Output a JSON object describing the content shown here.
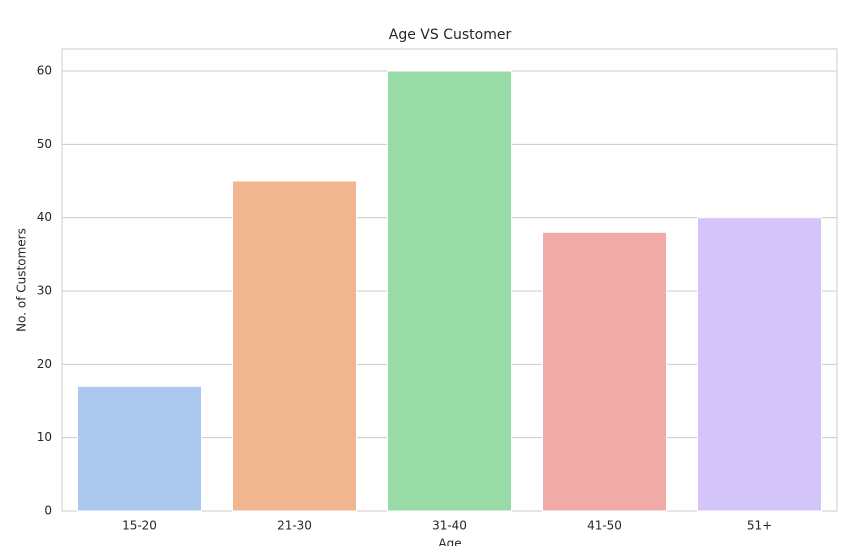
{
  "chart_data": {
    "type": "bar",
    "title": "Age VS Customer",
    "x_label": "Age",
    "y_label": "No. of Customers",
    "categories": [
      "15-20",
      "21-30",
      "31-40",
      "41-50",
      "51+"
    ],
    "values": [
      17,
      45,
      60,
      38,
      40
    ],
    "colors": [
      "#abc9ee",
      "#f0b690",
      "#98dba6",
      "#f2aaa8",
      "#d3c4fa"
    ],
    "ylim": [
      0,
      63
    ],
    "yticks": [
      0,
      10,
      20,
      30,
      40,
      50,
      60
    ],
    "grid": true
  }
}
